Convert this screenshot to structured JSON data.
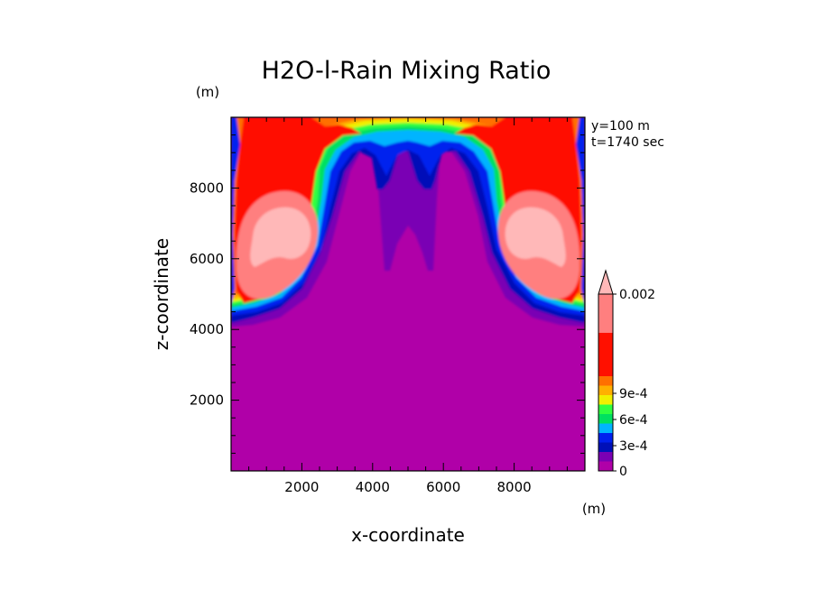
{
  "chart_data": {
    "type": "heatmap",
    "title": "H2O-l-Rain Mixing Ratio",
    "xlabel": "x-coordinate",
    "ylabel": "z-coordinate",
    "x_unit": "(m)",
    "y_unit": "(m)",
    "xlim": [
      0,
      10000
    ],
    "ylim": [
      0,
      10000
    ],
    "x_ticks": [
      {
        "value": 2000,
        "label": "2000"
      },
      {
        "value": 4000,
        "label": "4000"
      },
      {
        "value": 6000,
        "label": "6000"
      },
      {
        "value": 8000,
        "label": "8000"
      }
    ],
    "y_ticks": [
      {
        "value": 2000,
        "label": "2000"
      },
      {
        "value": 4000,
        "label": "4000"
      },
      {
        "value": 6000,
        "label": "6000"
      },
      {
        "value": 8000,
        "label": "8000"
      }
    ],
    "annotations": [
      "y=100 m",
      "t=1740 sec"
    ],
    "colorbar": {
      "levels": [
        {
          "color": "#b000a8",
          "label": "0"
        },
        {
          "color": "#7a00b4",
          "label": ""
        },
        {
          "color": "#0010b8",
          "label": ""
        },
        {
          "color": "#0020ee",
          "label": "3e-4"
        },
        {
          "color": "#00b4ff",
          "label": ""
        },
        {
          "color": "#00e060",
          "label": ""
        },
        {
          "color": "#30ff40",
          "label": "6e-4"
        },
        {
          "color": "#f0f000",
          "label": ""
        },
        {
          "color": "#ffb000",
          "label": ""
        },
        {
          "color": "#ff7000",
          "label": "9e-4"
        },
        {
          "color": "#ff1000",
          "label": ""
        },
        {
          "color": "#ff7f7f",
          "label": ""
        },
        {
          "color": "#ffb8b8",
          "label": "0.002"
        }
      ]
    }
  }
}
